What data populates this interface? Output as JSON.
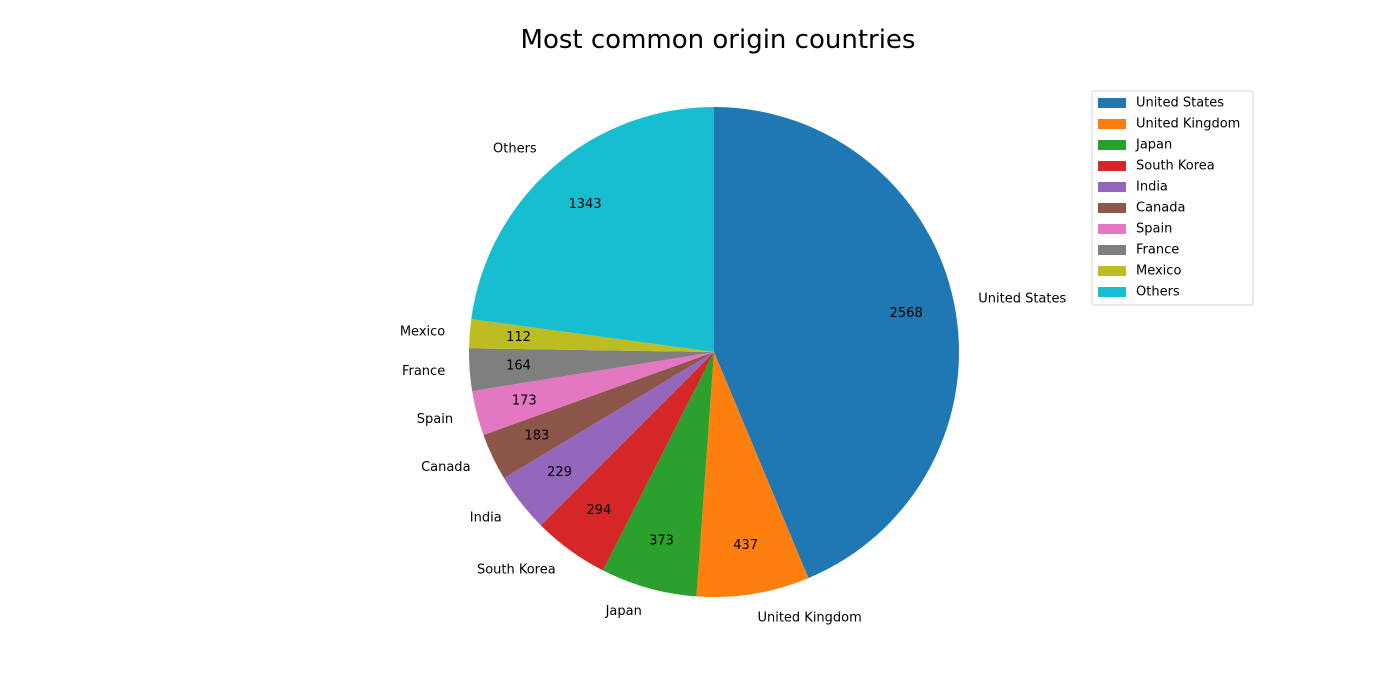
{
  "chart_data": {
    "type": "pie",
    "title": "Most common origin countries",
    "legend_position": "top-right",
    "start_angle_deg": 90,
    "direction": "clockwise",
    "slices": [
      {
        "label": "United States",
        "value": 2568,
        "color": "#1f77b4"
      },
      {
        "label": "United Kingdom",
        "value": 437,
        "color": "#ff7f0e"
      },
      {
        "label": "Japan",
        "value": 373,
        "color": "#2ca02c"
      },
      {
        "label": "South Korea",
        "value": 294,
        "color": "#d62728"
      },
      {
        "label": "India",
        "value": 229,
        "color": "#9467bd"
      },
      {
        "label": "Canada",
        "value": 183,
        "color": "#8c564b"
      },
      {
        "label": "Spain",
        "value": 173,
        "color": "#e377c2"
      },
      {
        "label": "France",
        "value": 164,
        "color": "#7f7f7f"
      },
      {
        "label": "Mexico",
        "value": 112,
        "color": "#bcbd22"
      },
      {
        "label": "Others",
        "value": 1343,
        "color": "#17becf"
      }
    ]
  }
}
